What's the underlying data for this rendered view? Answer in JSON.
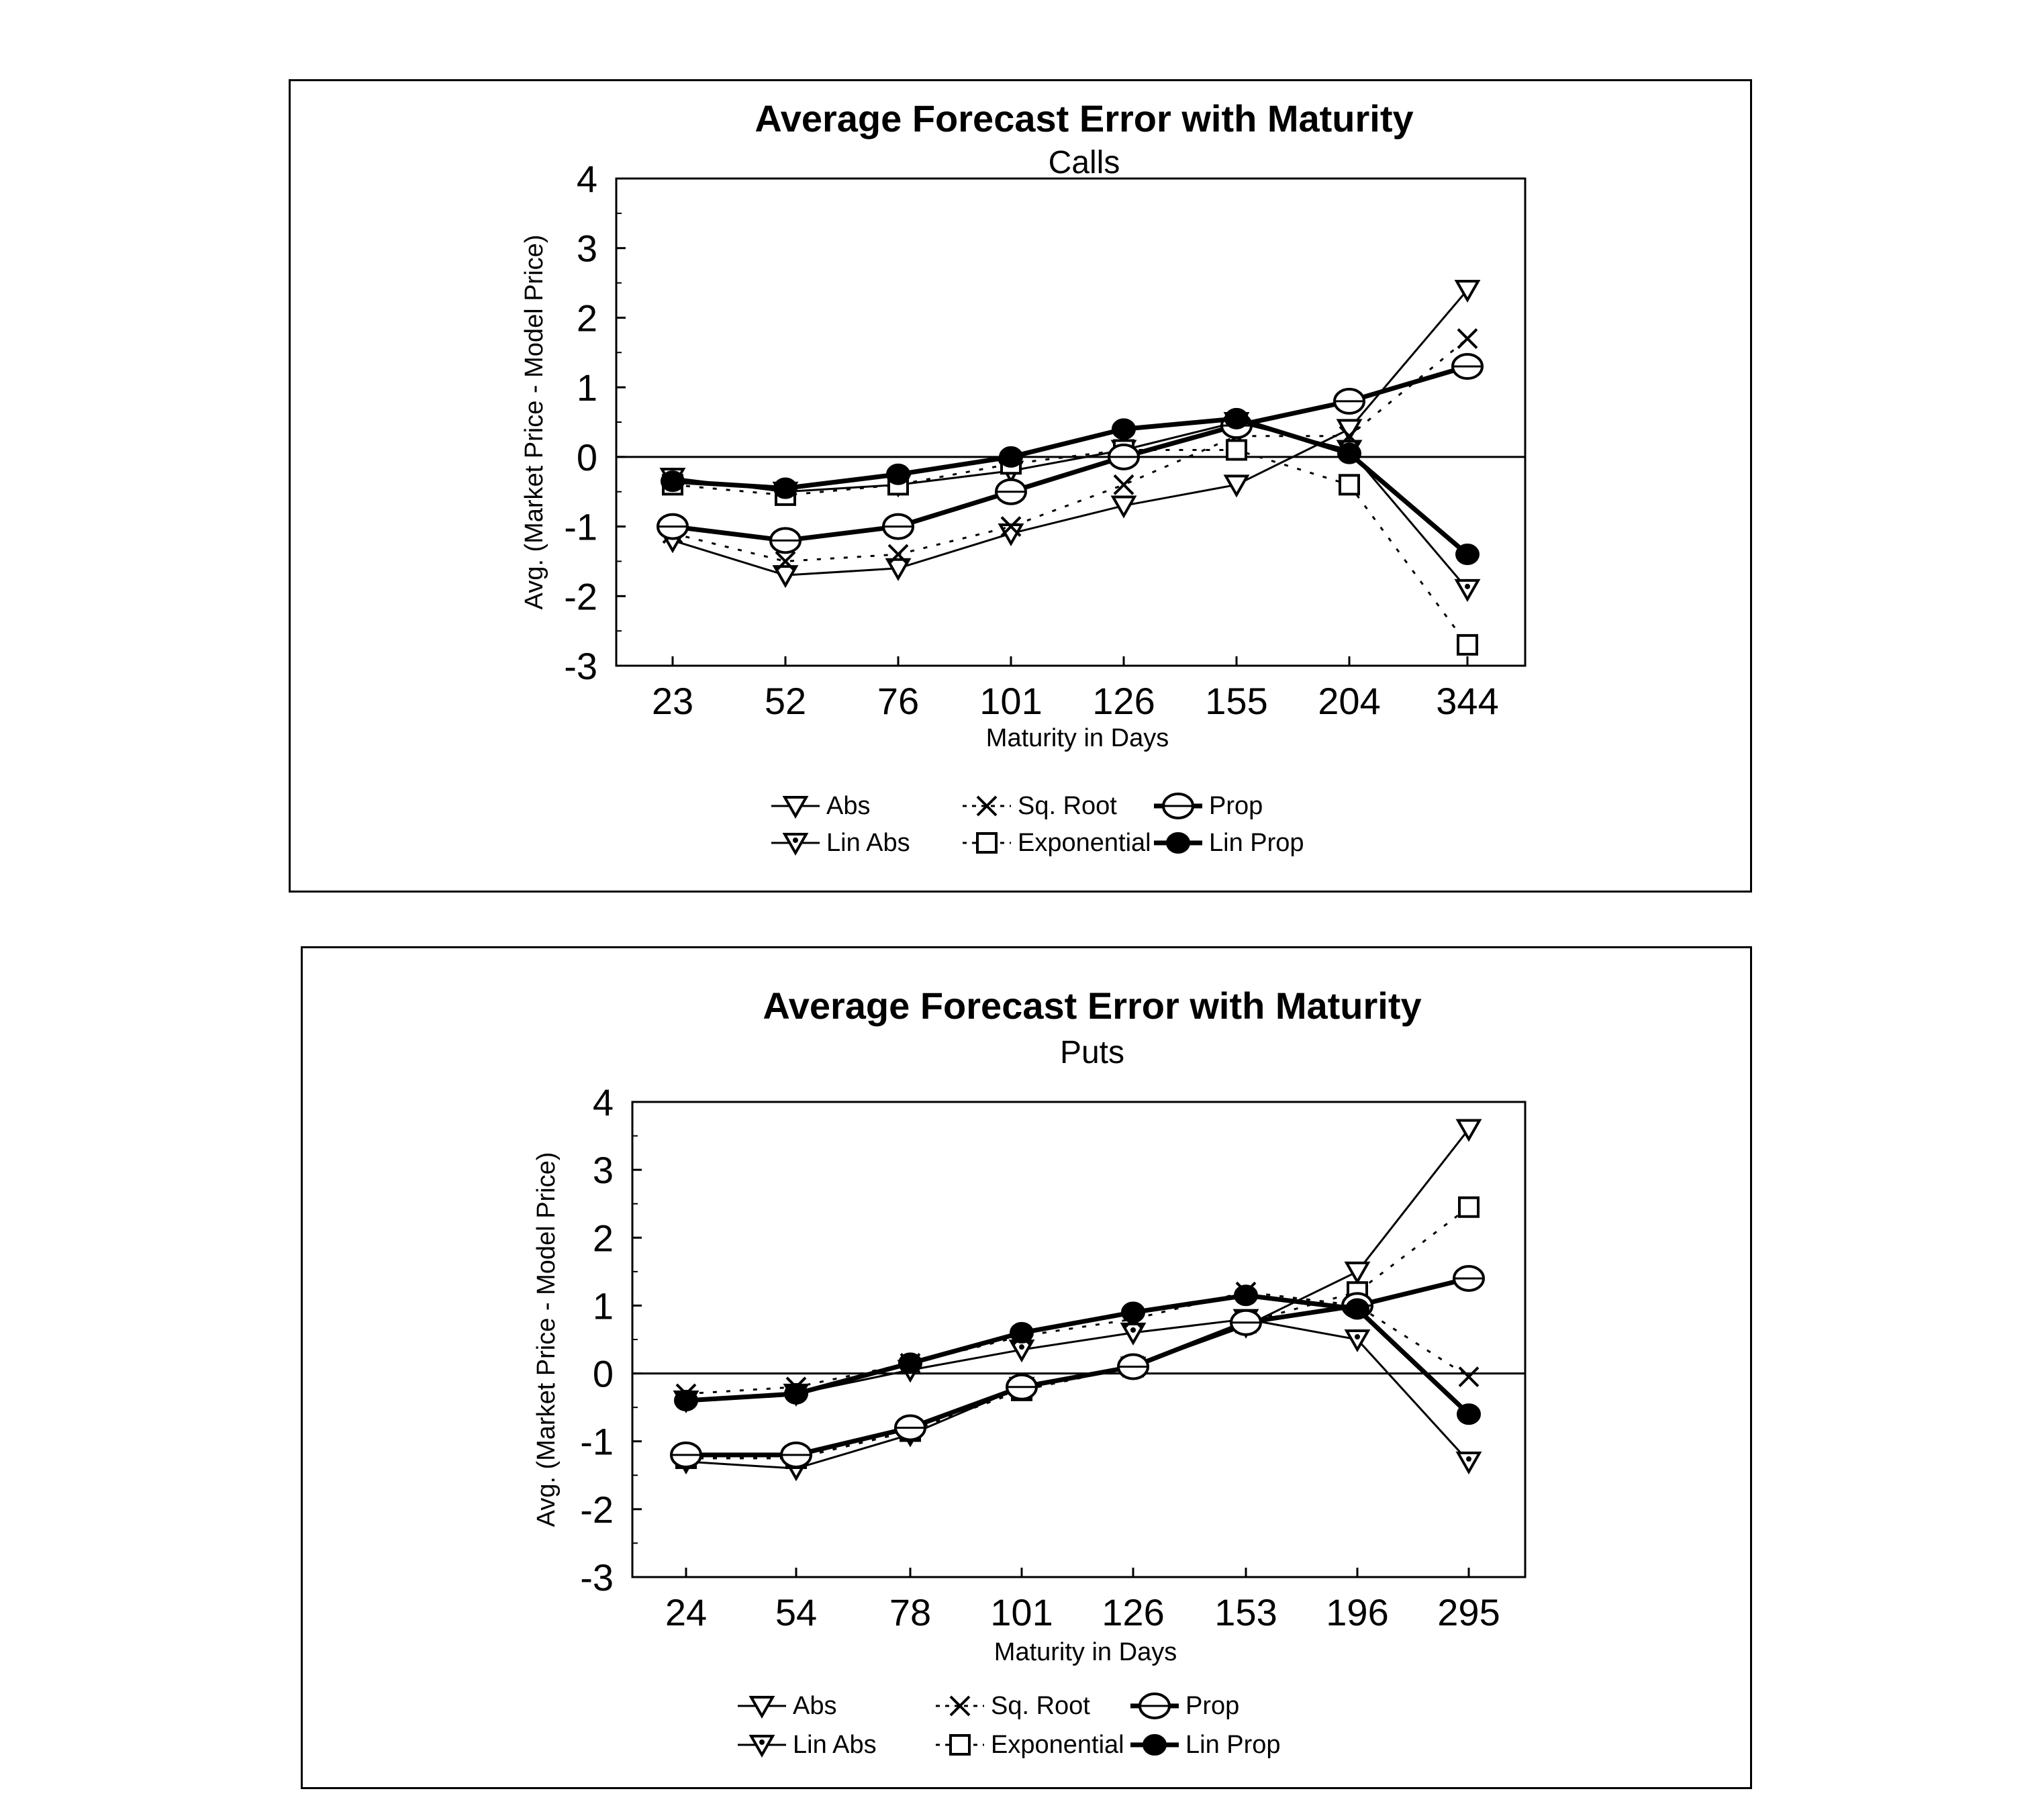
{
  "page_header": "",
  "chart_data": [
    {
      "type": "line",
      "title": "Average Forecast Error with Maturity",
      "subtitle": "Calls",
      "xlabel": "Maturity in Days",
      "ylabel": "Avg. (Market Price - Model Price)",
      "categories": [
        "23",
        "52",
        "76",
        "101",
        "126",
        "155",
        "204",
        "344"
      ],
      "ylim": [
        -3,
        4
      ],
      "yticks": [
        4,
        3,
        2,
        1,
        0,
        -1,
        -2,
        -3
      ],
      "grid": false,
      "zero_line": true,
      "legend_position": "bottom",
      "series": [
        {
          "name": "Abs",
          "marker": "triangle-down-open",
          "line": "solid",
          "values": [
            -1.2,
            -1.7,
            -1.6,
            -1.1,
            -0.7,
            -0.4,
            0.4,
            2.4
          ]
        },
        {
          "name": "Lin Abs",
          "marker": "triangle-down-dot",
          "line": "solid",
          "values": [
            -0.3,
            -0.5,
            -0.4,
            -0.2,
            0.1,
            0.5,
            0.1,
            -1.9
          ]
        },
        {
          "name": "Sq. Root",
          "marker": "x",
          "line": "dotted",
          "values": [
            -1.1,
            -1.5,
            -1.4,
            -1.0,
            -0.4,
            0.3,
            0.3,
            1.7
          ]
        },
        {
          "name": "Exponential",
          "marker": "square-open",
          "line": "dotted",
          "values": [
            -0.4,
            -0.55,
            -0.4,
            -0.1,
            0.1,
            0.1,
            -0.4,
            -2.7
          ]
        },
        {
          "name": "Prop",
          "marker": "circle-open",
          "line": "solid-thick",
          "values": [
            -1.0,
            -1.2,
            -1.0,
            -0.5,
            0.0,
            0.45,
            0.8,
            1.3
          ]
        },
        {
          "name": "Lin Prop",
          "marker": "circle-filled",
          "line": "solid-thick",
          "values": [
            -0.35,
            -0.45,
            -0.25,
            0.0,
            0.4,
            0.55,
            0.05,
            -1.4
          ]
        }
      ]
    },
    {
      "type": "line",
      "title": "Average Forecast Error with Maturity",
      "subtitle": "Puts",
      "xlabel": "Maturity in Days",
      "ylabel": "Avg. (Market Price - Model Price)",
      "categories": [
        "24",
        "54",
        "78",
        "101",
        "126",
        "153",
        "196",
        "295"
      ],
      "ylim": [
        -3,
        4
      ],
      "yticks": [
        4,
        3,
        2,
        1,
        0,
        -1,
        -2,
        -3
      ],
      "grid": false,
      "zero_line": true,
      "legend_position": "bottom",
      "series": [
        {
          "name": "Abs",
          "marker": "triangle-down-open",
          "line": "solid",
          "values": [
            -1.3,
            -1.4,
            -0.9,
            -0.2,
            0.1,
            0.7,
            1.5,
            3.6
          ]
        },
        {
          "name": "Lin Abs",
          "marker": "triangle-down-dot",
          "line": "solid",
          "values": [
            -0.4,
            -0.3,
            0.05,
            0.35,
            0.6,
            0.8,
            0.5,
            -1.3
          ]
        },
        {
          "name": "Sq. Root",
          "marker": "x",
          "line": "dotted",
          "values": [
            -0.3,
            -0.2,
            0.15,
            0.55,
            0.8,
            1.2,
            1.0,
            -0.05
          ]
        },
        {
          "name": "Exponential",
          "marker": "square-open",
          "line": "dotted",
          "values": [
            -1.25,
            -1.25,
            -0.85,
            -0.25,
            0.1,
            0.75,
            1.2,
            2.45
          ]
        },
        {
          "name": "Prop",
          "marker": "circle-open",
          "line": "solid-thick",
          "values": [
            -1.2,
            -1.2,
            -0.8,
            -0.2,
            0.1,
            0.75,
            1.0,
            1.4
          ]
        },
        {
          "name": "Lin Prop",
          "marker": "circle-filled",
          "line": "solid-thick",
          "values": [
            -0.4,
            -0.3,
            0.15,
            0.6,
            0.9,
            1.15,
            0.95,
            -0.6
          ]
        }
      ]
    }
  ]
}
